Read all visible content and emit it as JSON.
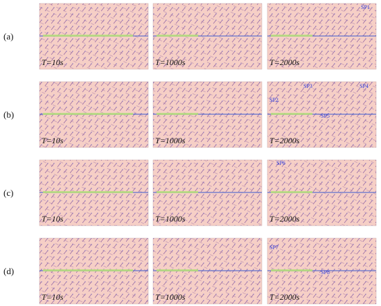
{
  "rows": [
    {
      "label": "(a)",
      "panels": [
        {
          "time": "T=10s",
          "annotations": []
        },
        {
          "time": "T=1000s",
          "annotations": []
        },
        {
          "time": "T=2000s",
          "annotations": [
            "SP1"
          ]
        }
      ]
    },
    {
      "label": "(b)",
      "panels": [
        {
          "time": "T=10s",
          "annotations": []
        },
        {
          "time": "T=1000s",
          "annotations": []
        },
        {
          "time": "T=2000s",
          "annotations": [
            "SP2",
            "SP3",
            "SP4",
            "SP5"
          ]
        }
      ]
    },
    {
      "label": "(c)",
      "panels": [
        {
          "time": "T=10s",
          "annotations": []
        },
        {
          "time": "T=1000s",
          "annotations": []
        },
        {
          "time": "T=2000s",
          "annotations": [
            "SP6"
          ]
        }
      ]
    },
    {
      "label": "(d)",
      "panels": [
        {
          "time": "T=10s",
          "annotations": []
        },
        {
          "time": "T=1000s",
          "annotations": []
        },
        {
          "time": "T=2000s",
          "annotations": [
            "SP7",
            "SP8"
          ]
        }
      ]
    }
  ]
}
